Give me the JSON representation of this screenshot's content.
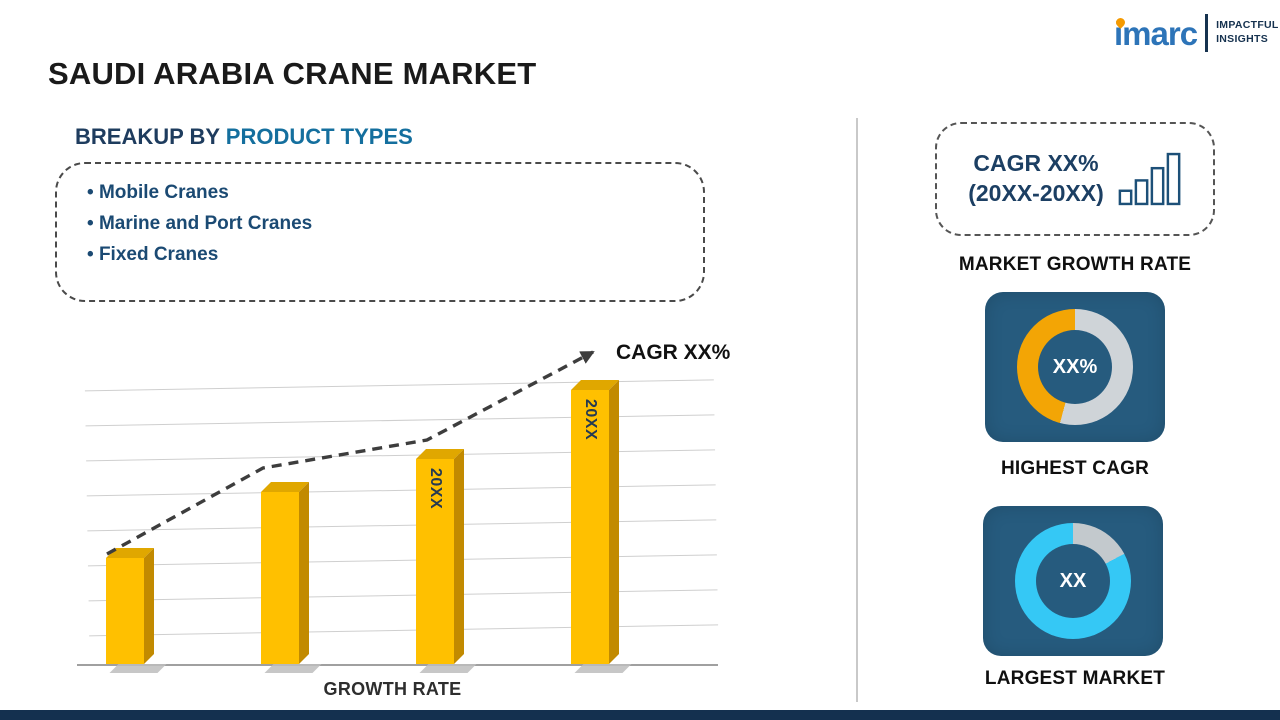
{
  "page": {
    "title": "SAUDI ARABIA CRANE MARKET"
  },
  "logo": {
    "brand": "imarc",
    "tagline_line1": "IMPACTFUL",
    "tagline_line2": "INSIGHTS"
  },
  "breakup": {
    "heading_prefix": "BREAKUP BY ",
    "heading_highlight": "PRODUCT TYPES",
    "items": [
      "Mobile Cranes",
      "Marine and Port Cranes",
      "Fixed Cranes"
    ]
  },
  "chart_data": {
    "type": "bar",
    "categories": [
      "",
      "",
      "20XX",
      "20XX"
    ],
    "values": [
      32,
      52,
      62,
      83
    ],
    "value_note": "relative bar heights, no numeric axis shown",
    "ylim": [
      0,
      100
    ],
    "xlabel": "GROWTH RATE",
    "ylabel": "",
    "title": "",
    "trend_annotation": "CAGR XX%",
    "grid": true,
    "legend": false,
    "bar_color": "#ffc000"
  },
  "right_panel": {
    "cagr_box": {
      "line1": "CAGR XX%",
      "line2": "(20XX-20XX)"
    },
    "market_growth_rate_label": "MARKET GROWTH RATE",
    "highest_cagr": {
      "value": "XX%",
      "label": "HIGHEST CAGR",
      "ring_main_color": "#f3a505",
      "ring_rest_color": "#cfd4d8"
    },
    "largest_market": {
      "value": "XX",
      "label": "LARGEST MARKET",
      "ring_main_color": "#35c8f5",
      "ring_rest_color": "#c3c9cd"
    }
  },
  "icons": {
    "bar_chart_icon": "ascending-outlined-bars",
    "flame_icon": "imarc-orange-flame",
    "trend_arrow": "dashed-upward-arrow"
  },
  "colors": {
    "heading_navy": "#1e3c5e",
    "heading_teal": "#146f9e",
    "list_text": "#1b4a73",
    "bar_yellow": "#ffc000",
    "bar_side": "#c28a00",
    "panel_blue": "#265b7e",
    "brand_blue": "#2d74b8",
    "brand_orange": "#f59a00",
    "bottom_bar": "#14304f"
  }
}
